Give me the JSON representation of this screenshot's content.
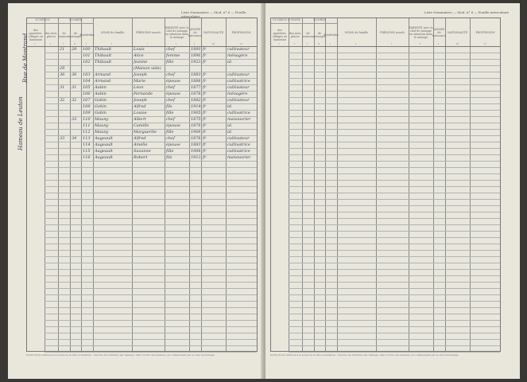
{
  "header_line": "Liste Nominative — Mod. n° 6 — Feuille intercalaire",
  "groups": {
    "numeros": "NUMÉROS",
    "nombre": "NOMBRE",
    "numeros_ordre": "NUMÉROS D'ORDRE"
  },
  "columns": [
    {
      "label": "des quartiers, villages ou hameaux",
      "num": "1"
    },
    {
      "label": "des rues, places",
      "num": "2"
    },
    {
      "label": "de maisons",
      "num": "3"
    },
    {
      "label": "de ménages",
      "num": "4"
    },
    {
      "label": "d'individus",
      "num": "5"
    },
    {
      "label": "NOMS de famille",
      "num": "6"
    },
    {
      "label": "PRÉNOMS usuels",
      "num": "7"
    },
    {
      "label": "PARENTÉ avec le chef de ménage ou situation dans le ménage",
      "num": "8"
    },
    {
      "label": "ANNÉE de naissance",
      "num": "9"
    },
    {
      "label": "NATIONALITÉ",
      "num": "10"
    },
    {
      "label": "PROFESSION",
      "num": "11"
    }
  ],
  "margin_notes": [
    "Rue de Montrand",
    "Hameau de Leuton"
  ],
  "rows": [
    {
      "maison": "21",
      "menage": "29",
      "ind": "100",
      "nom": "Thibault",
      "prenom": "Louis",
      "parente": "chef",
      "annee": "1891",
      "nat": "fr",
      "prof": "cultivateur"
    },
    {
      "maison": "",
      "menage": "",
      "ind": "101",
      "nom": "Thibault",
      "prenom": "Alice",
      "parente": "femme",
      "annee": "1890",
      "nat": "fr",
      "prof": "ménagère"
    },
    {
      "maison": "",
      "menage": "",
      "ind": "102",
      "nom": "Thibault",
      "prenom": "Jeanne",
      "parente": "fille",
      "annee": "1923",
      "nat": "fr",
      "prof": "id."
    },
    {
      "maison": "29",
      "menage": "",
      "ind": "",
      "nom": "",
      "prenom": "(Maison vide)",
      "parente": "",
      "annee": "",
      "nat": "",
      "prof": ""
    },
    {
      "maison": "30",
      "menage": "30",
      "ind": "103",
      "nom": "Armand",
      "prenom": "Joseph",
      "parente": "chef",
      "annee": "1881",
      "nat": "fr",
      "prof": "cultivateur"
    },
    {
      "maison": "",
      "menage": "",
      "ind": "104",
      "nom": "Armand",
      "prenom": "Marie",
      "parente": "épouse",
      "annee": "1886",
      "nat": "fr",
      "prof": "cultivatrice"
    },
    {
      "maison": "31",
      "menage": "31",
      "ind": "105",
      "nom": "Aubin",
      "prenom": "Léon",
      "parente": "chef",
      "annee": "1877",
      "nat": "fr",
      "prof": "cultivateur"
    },
    {
      "maison": "",
      "menage": "",
      "ind": "106",
      "nom": "Aubin",
      "prenom": "Fernande",
      "parente": "épouse",
      "annee": "1878",
      "nat": "fr",
      "prof": "ménagère"
    },
    {
      "maison": "32",
      "menage": "32",
      "ind": "107",
      "nom": "Gobin",
      "prenom": "Joseph",
      "parente": "chef",
      "annee": "1882",
      "nat": "fr",
      "prof": "cultivateur"
    },
    {
      "maison": "",
      "menage": "",
      "ind": "108",
      "nom": "Gobin",
      "prenom": "Alfred",
      "parente": "fils",
      "annee": "1914",
      "nat": "fr",
      "prof": "id."
    },
    {
      "maison": "",
      "menage": "",
      "ind": "109",
      "nom": "Gobin",
      "prenom": "Louise",
      "parente": "fille",
      "annee": "1905",
      "nat": "fr",
      "prof": "cultivatrice"
    },
    {
      "maison": "",
      "menage": "33",
      "ind": "110",
      "nom": "Mauny",
      "prenom": "Albert",
      "parente": "chef",
      "annee": "1875",
      "nat": "fr",
      "prof": "manouvrier"
    },
    {
      "maison": "",
      "menage": "",
      "ind": "111",
      "nom": "Mauny",
      "prenom": "Camille",
      "parente": "épouse",
      "annee": "1879",
      "nat": "fr",
      "prof": "id."
    },
    {
      "maison": "",
      "menage": "",
      "ind": "112",
      "nom": "Mauny",
      "prenom": "Marguerite",
      "parente": "fille",
      "annee": "1909",
      "nat": "fr",
      "prof": "id."
    },
    {
      "maison": "33",
      "menage": "34",
      "ind": "113",
      "nom": "Augeault",
      "prenom": "Alfred",
      "parente": "chef",
      "annee": "1878",
      "nat": "fr",
      "prof": "cultivateur"
    },
    {
      "maison": "",
      "menage": "",
      "ind": "114",
      "nom": "Augeault",
      "prenom": "Amélie",
      "parente": "épouse",
      "annee": "1881",
      "nat": "fr",
      "prof": "cultivatrice"
    },
    {
      "maison": "",
      "menage": "",
      "ind": "115",
      "nom": "Augeault",
      "prenom": "Suzanne",
      "parente": "fille",
      "annee": "1908",
      "nat": "fr",
      "prof": "cultivatrice"
    },
    {
      "maison": "",
      "menage": "",
      "ind": "116",
      "nom": "Augeault",
      "prenom": "Robert",
      "parente": "fils",
      "annee": "1913",
      "nat": "fr",
      "prof": "manouvrier"
    }
  ],
  "footer_note": "Instructions relatives à la tenue de la liste nominative : inscrire les individus par ménage, dans l'ordre des maisons, en commençant par le chef de ménage."
}
